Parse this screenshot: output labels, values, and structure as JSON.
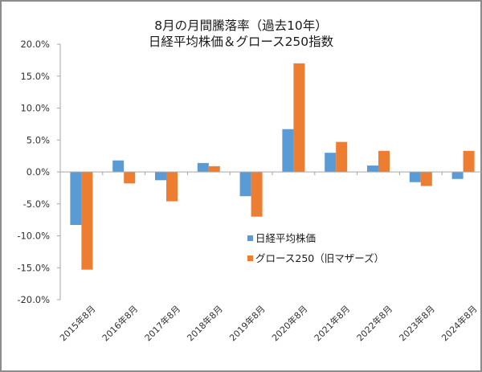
{
  "chart_data": {
    "type": "bar",
    "title_line1": "8月の月間騰落率（過去10年）",
    "title_line2": "日経平均株価＆グロース250指数",
    "xlabel": "",
    "ylabel": "",
    "ylim": [
      -20,
      20
    ],
    "ytick_step": 5,
    "ytick_labels": [
      "20.0%",
      "15.0%",
      "10.0%",
      "5.0%",
      "0.0%",
      "-5.0%",
      "-10.0%",
      "-15.0%",
      "-20.0%"
    ],
    "categories": [
      "2015年8月",
      "2016年8月",
      "2017年8月",
      "2018年8月",
      "2019年8月",
      "2020年8月",
      "2021年8月",
      "2022年8月",
      "2023年8月",
      "2024年8月"
    ],
    "series": [
      {
        "name": "日経平均株価",
        "color": "#5b9bd5",
        "values": [
          -8.3,
          1.8,
          -1.3,
          1.4,
          -3.8,
          6.7,
          3.0,
          1.0,
          -1.6,
          -1.1
        ]
      },
      {
        "name": "グロース250（旧マザーズ）",
        "color": "#ed7d31",
        "values": [
          -15.3,
          -1.8,
          -4.6,
          0.9,
          -7.0,
          17.0,
          4.7,
          3.3,
          -2.2,
          3.3
        ]
      }
    ],
    "legend_position": "center-right",
    "grid": false
  }
}
